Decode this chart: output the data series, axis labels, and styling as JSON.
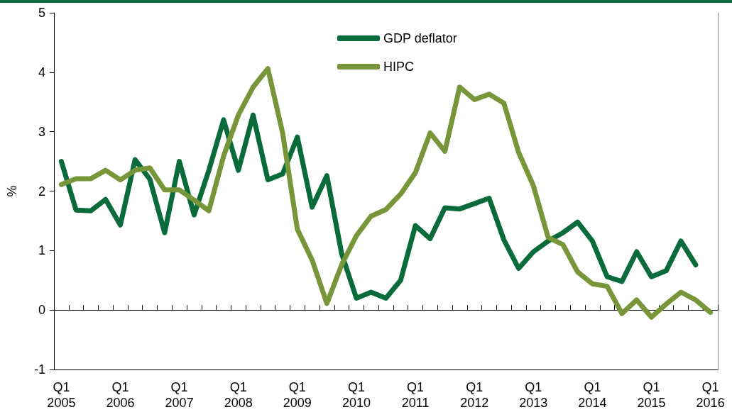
{
  "chart_data": {
    "type": "line",
    "ylabel": "%",
    "categories": [
      "Q1\n2005",
      null,
      null,
      null,
      "Q1\n2006",
      null,
      null,
      null,
      "Q1\n2007",
      null,
      null,
      null,
      "Q1\n2008",
      null,
      null,
      null,
      "Q1\n2009",
      null,
      null,
      null,
      "Q1\n2010",
      null,
      null,
      null,
      "Q1\n2011",
      null,
      null,
      null,
      "Q1\n2012",
      null,
      null,
      null,
      "Q1\n2013",
      null,
      null,
      null,
      "Q1\n2014",
      null,
      null,
      null,
      "Q1\n2015",
      null,
      null,
      null,
      "Q1\n2016"
    ],
    "series": [
      {
        "name": "GDP deflator",
        "color": "#0a6b3a",
        "values": [
          2.5,
          1.68,
          1.67,
          1.86,
          1.43,
          2.53,
          2.2,
          1.3,
          2.5,
          1.6,
          2.35,
          3.2,
          2.35,
          3.28,
          2.19,
          2.29,
          2.91,
          1.73,
          2.26,
          0.95,
          0.2,
          0.3,
          0.2,
          0.5,
          1.42,
          1.2,
          1.72,
          1.7,
          1.79,
          1.88,
          1.18,
          0.7,
          0.98,
          1.16,
          1.3,
          1.48,
          1.16,
          0.56,
          0.48,
          0.98,
          0.56,
          0.66,
          1.16,
          0.76,
          null
        ]
      },
      {
        "name": "HIPC",
        "color": "#77963a",
        "values": [
          2.11,
          2.21,
          2.21,
          2.35,
          2.19,
          2.35,
          2.39,
          2.02,
          2.02,
          1.85,
          1.67,
          2.59,
          3.28,
          3.75,
          4.06,
          2.98,
          1.36,
          0.84,
          0.11,
          0.76,
          1.25,
          1.58,
          1.69,
          1.95,
          2.31,
          2.98,
          2.67,
          3.75,
          3.54,
          3.63,
          3.48,
          2.65,
          2.09,
          1.22,
          1.1,
          0.64,
          0.44,
          0.4,
          -0.06,
          0.17,
          -0.12,
          0.1,
          0.3,
          0.17,
          -0.04
        ]
      }
    ],
    "ylim": [
      -1,
      5
    ],
    "yticks": [
      -1,
      0,
      1,
      2,
      3,
      4,
      5
    ],
    "legend": "top",
    "marker": "none",
    "line_style": "solid"
  }
}
